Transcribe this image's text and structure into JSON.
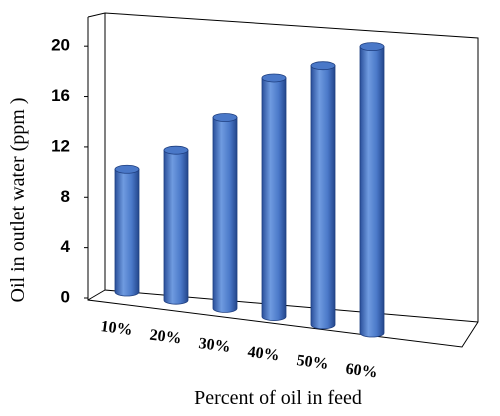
{
  "chart_data": {
    "type": "bar3d",
    "y_label": "Oil in outlet water  (ppm )",
    "x_label": "Percent of oil in feed",
    "categories": [
      "10%",
      "20%",
      "30%",
      "40%",
      "50%",
      "60%"
    ],
    "values": [
      9,
      11,
      14,
      17.5,
      19,
      21
    ],
    "color": "#4a78c8",
    "ylim": [
      0,
      22
    ],
    "yticks": [
      0,
      4,
      8,
      12,
      16,
      20
    ]
  }
}
